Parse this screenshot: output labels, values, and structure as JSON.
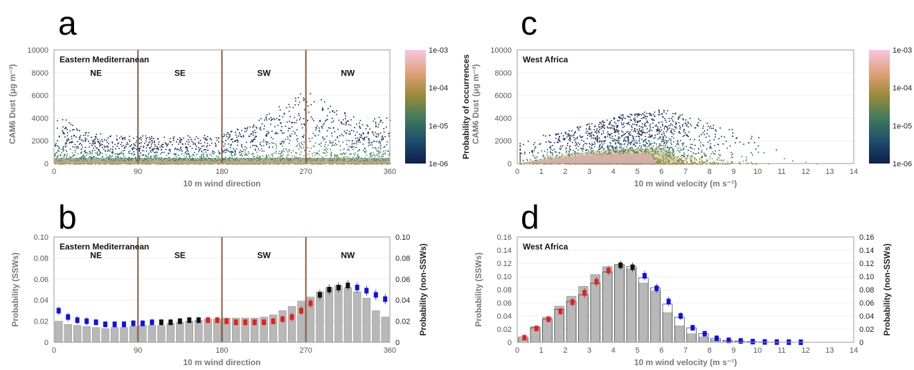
{
  "chart_data": [
    {
      "panel": "a",
      "type": "scatter",
      "title": "Eastern Mediterranean",
      "xlabel": "10 m wind direction",
      "ylabel_main": "CAM6 Dust",
      "ylabel_unit": "(μg m⁻³)",
      "xlim": [
        0,
        360
      ],
      "ylim": [
        0,
        10000
      ],
      "xticks": [
        "0",
        "90",
        "180",
        "270",
        "360"
      ],
      "yticks": [
        "0",
        "2000",
        "4000",
        "6000",
        "8000",
        "10000"
      ],
      "sector_lines": [
        90,
        180,
        270
      ],
      "sectors": [
        "NE",
        "SE",
        "SW",
        "NW"
      ],
      "colorbar": {
        "label": "Probability of occurrences",
        "ticks": [
          "1e-03",
          "1e-04",
          "1e-05",
          "1e-06"
        ],
        "colors": [
          "#f7c4e6",
          "#e2a278",
          "#9a8a3a",
          "#3f7b5d",
          "#1d4e6b",
          "#0e1f4f"
        ]
      },
      "envelope": {
        "x": [
          0,
          30,
          60,
          90,
          120,
          150,
          180,
          210,
          240,
          270,
          300,
          330,
          360
        ],
        "y": [
          4500,
          3000,
          2500,
          2500,
          2500,
          2500,
          2600,
          3500,
          5000,
          6500,
          5000,
          3800,
          4500
        ]
      }
    },
    {
      "panel": "b",
      "type": "bar",
      "title": "Eastern Mediterranean",
      "xlabel": "10 m wind direction",
      "ylabel_left": "Probability (SSWs)",
      "ylabel_right": "Probability (non-SSWs)",
      "xlim": [
        0,
        360
      ],
      "ylim": [
        0,
        0.1
      ],
      "xticks": [
        "0",
        "90",
        "180",
        "270",
        "360"
      ],
      "yticks": [
        "0",
        "0.02",
        "0.04",
        "0.06",
        "0.08",
        "0.10"
      ],
      "sector_lines": [
        90,
        180,
        270
      ],
      "sectors": [
        "NE",
        "SE",
        "SW",
        "NW"
      ],
      "x": [
        5,
        15,
        25,
        35,
        45,
        55,
        65,
        75,
        85,
        95,
        105,
        115,
        125,
        135,
        145,
        155,
        165,
        175,
        185,
        195,
        205,
        215,
        225,
        235,
        245,
        255,
        265,
        275,
        285,
        295,
        305,
        315,
        325,
        335,
        345,
        355
      ],
      "bars": [
        0.02,
        0.017,
        0.016,
        0.015,
        0.014,
        0.013,
        0.014,
        0.014,
        0.015,
        0.016,
        0.016,
        0.016,
        0.018,
        0.019,
        0.02,
        0.021,
        0.022,
        0.022,
        0.023,
        0.023,
        0.023,
        0.023,
        0.024,
        0.026,
        0.03,
        0.034,
        0.039,
        0.043,
        0.048,
        0.052,
        0.054,
        0.052,
        0.048,
        0.042,
        0.03,
        0.024
      ],
      "markers": [
        0.03,
        0.024,
        0.021,
        0.02,
        0.019,
        0.017,
        0.017,
        0.017,
        0.018,
        0.018,
        0.019,
        0.019,
        0.019,
        0.02,
        0.021,
        0.021,
        0.021,
        0.021,
        0.02,
        0.019,
        0.019,
        0.019,
        0.019,
        0.02,
        0.022,
        0.024,
        0.03,
        0.037,
        0.045,
        0.05,
        0.052,
        0.054,
        0.052,
        0.049,
        0.045,
        0.041
      ],
      "marker_colors": [
        "blue",
        "blue",
        "blue",
        "blue",
        "blue",
        "blue",
        "blue",
        "blue",
        "blue",
        "blue",
        "blue",
        "black",
        "black",
        "black",
        "black",
        "black",
        "red",
        "red",
        "red",
        "red",
        "red",
        "red",
        "red",
        "red",
        "red",
        "red",
        "red",
        "red",
        "black",
        "black",
        "black",
        "black",
        "blue",
        "blue",
        "blue",
        "blue"
      ],
      "marker_err": [
        0.004,
        0.004,
        0.004,
        0.004,
        0.003,
        0.003,
        0.003,
        0.003,
        0.003,
        0.003,
        0.003,
        0.003,
        0.003,
        0.003,
        0.003,
        0.003,
        0.003,
        0.003,
        0.003,
        0.003,
        0.003,
        0.003,
        0.003,
        0.003,
        0.003,
        0.004,
        0.004,
        0.004,
        0.005,
        0.005,
        0.005,
        0.005,
        0.005,
        0.005,
        0.005,
        0.005
      ]
    },
    {
      "panel": "c",
      "type": "scatter",
      "title": "West Africa",
      "xlabel": "10 m wind velocity (m s⁻¹)",
      "ylabel_main": "CAM6 Dust",
      "ylabel_unit": "(μg m⁻³)",
      "xlim": [
        0,
        14
      ],
      "ylim": [
        0,
        10000
      ],
      "xticks": [
        "0",
        "1",
        "2",
        "3",
        "4",
        "5",
        "6",
        "7",
        "8",
        "9",
        "10",
        "11",
        "12",
        "13",
        "14"
      ],
      "yticks": [
        "0",
        "2000",
        "4000",
        "6000",
        "8000",
        "10000"
      ],
      "colorbar": {
        "label": "Probability of occurrences",
        "ticks": [
          "1e-03",
          "1e-04",
          "1e-05",
          "1e-06"
        ],
        "colors": [
          "#f7c4e6",
          "#e2a278",
          "#9a8a3a",
          "#3f7b5d",
          "#1d4e6b",
          "#0e1f4f"
        ]
      },
      "envelope": {
        "x": [
          0,
          1,
          2,
          3,
          4,
          5,
          6,
          7,
          8,
          9,
          10,
          11,
          12,
          13,
          14
        ],
        "y": [
          1800,
          2500,
          3000,
          3600,
          4200,
          4600,
          4800,
          4400,
          3700,
          3000,
          2400,
          1800,
          1300,
          800,
          400
        ]
      }
    },
    {
      "panel": "d",
      "type": "bar",
      "title": "West Africa",
      "xlabel": "10 m wind velocity (m s⁻¹)",
      "ylabel_left": "Probability (SSWs)",
      "ylabel_right": "Probability (non-SSWs)",
      "xlim": [
        0,
        14
      ],
      "ylim": [
        0,
        0.16
      ],
      "xticks": [
        "0",
        "1",
        "2",
        "3",
        "4",
        "5",
        "6",
        "7",
        "8",
        "9",
        "10",
        "11",
        "12",
        "13",
        "14"
      ],
      "yticks": [
        "0",
        "0.02",
        "0.04",
        "0.06",
        "0.08",
        "0.10",
        "0.12",
        "0.14",
        "0.16"
      ],
      "x": [
        0.25,
        0.75,
        1.25,
        1.75,
        2.25,
        2.75,
        3.25,
        3.75,
        4.25,
        4.75,
        5.25,
        5.75,
        6.25,
        6.75,
        7.25,
        7.75,
        8.25,
        8.75,
        9.25,
        9.75,
        10.25,
        10.75,
        11.25,
        11.75
      ],
      "bars": [
        0.006,
        0.024,
        0.038,
        0.055,
        0.07,
        0.085,
        0.103,
        0.115,
        0.118,
        0.112,
        0.09,
        0.078,
        0.045,
        0.025,
        0.013,
        0.008,
        0.004,
        0.002,
        0.001,
        0.001,
        0.0005,
        0.0003,
        0.0002,
        0.0001
      ],
      "boxes": [
        0.008,
        0.022,
        0.035,
        0.05,
        0.062,
        0.072,
        0.09,
        0.107,
        0.118,
        0.115,
        0.098,
        0.083,
        0.058,
        0.038,
        0.022,
        0.013,
        0.006,
        0.003,
        0.002,
        0.001,
        0.0005,
        0.0003,
        0.0002,
        0.0001
      ],
      "markers": [
        0.007,
        0.021,
        0.035,
        0.047,
        0.061,
        0.075,
        0.092,
        0.109,
        0.117,
        0.114,
        0.101,
        0.082,
        0.062,
        0.04,
        0.022,
        0.013,
        0.006,
        0.003,
        0.002,
        0.001,
        0.0005,
        0.0003,
        0.0002,
        0.0001
      ],
      "marker_colors": [
        "red",
        "red",
        "red",
        "red",
        "red",
        "red",
        "red",
        "red",
        "black",
        "black",
        "blue",
        "blue",
        "blue",
        "blue",
        "blue",
        "blue",
        "blue",
        "blue",
        "blue",
        "blue",
        "blue",
        "blue",
        "blue",
        "blue"
      ],
      "marker_err": [
        0.002,
        0.003,
        0.004,
        0.005,
        0.006,
        0.007,
        0.007,
        0.007,
        0.007,
        0.007,
        0.007,
        0.007,
        0.007,
        0.006,
        0.004,
        0.003,
        0.002,
        0.002,
        0.001,
        0.001,
        0.001,
        0.0005,
        0.0005,
        0.0003
      ]
    }
  ]
}
